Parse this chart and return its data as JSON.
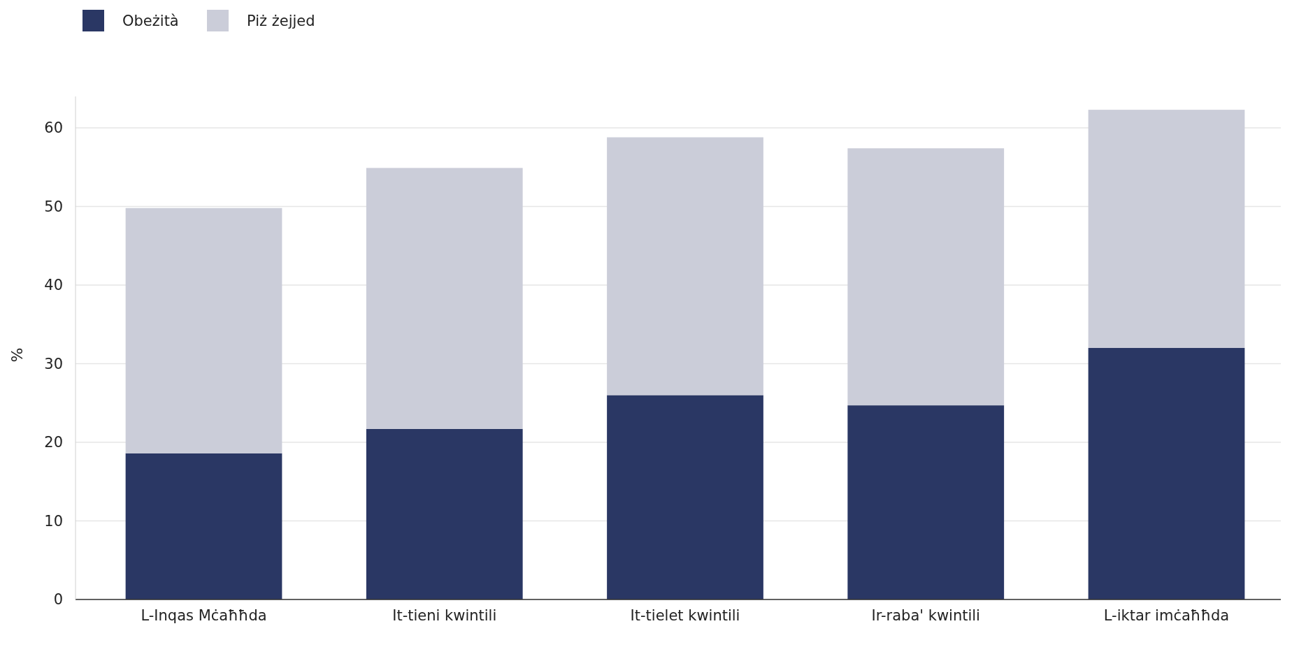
{
  "chart_data": {
    "type": "bar",
    "stacked": true,
    "ylabel": "%",
    "categories": [
      "L-Inqas Mċaħħda",
      "It-tieni kwintili",
      "It-tielet kwintili",
      "Ir-raba' kwintili",
      "L-iktar imċaħħda"
    ],
    "series": [
      {
        "name": "Obeżità",
        "color": "#2a3764",
        "values": [
          18.6,
          21.7,
          26.0,
          24.7,
          32.0
        ]
      },
      {
        "name": "Piż żejjed",
        "color": "#cbcdd9",
        "values": [
          31.2,
          33.2,
          32.8,
          32.7,
          30.3
        ]
      }
    ],
    "ylim": [
      0,
      64
    ],
    "yticks": [
      0,
      10,
      20,
      30,
      40,
      50,
      60
    ],
    "grid": "y",
    "legend": "top left"
  }
}
